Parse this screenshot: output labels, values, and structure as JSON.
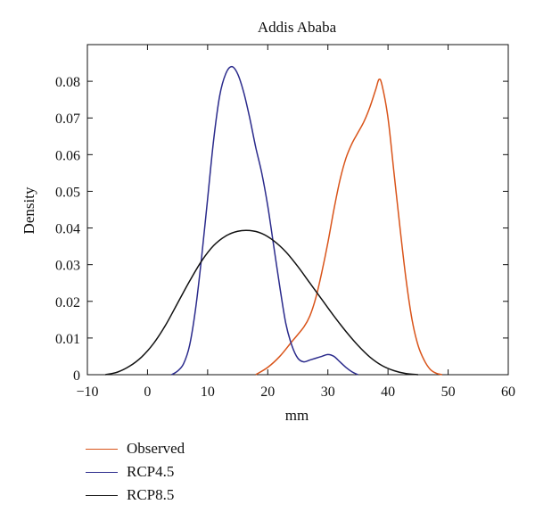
{
  "chart_data": {
    "type": "line",
    "title": "Addis Ababa",
    "xlabel": "mm",
    "ylabel": "Density",
    "xlim": [
      -10,
      60
    ],
    "ylim": [
      0,
      0.09
    ],
    "xticks": [
      -10,
      0,
      10,
      20,
      30,
      40,
      50,
      60
    ],
    "xtick_labels": [
      "−10",
      "0",
      "10",
      "20",
      "30",
      "40",
      "50",
      "60"
    ],
    "yticks": [
      0,
      0.01,
      0.02,
      0.03,
      0.04,
      0.05,
      0.06,
      0.07,
      0.08
    ],
    "ytick_labels": [
      "0",
      "0.01",
      "0.02",
      "0.03",
      "0.04",
      "0.05",
      "0.06",
      "0.07",
      "0.08"
    ],
    "grid": false,
    "legend_position": "below",
    "series": [
      {
        "name": "Observed",
        "color": "#d9541a",
        "x": [
          18,
          20,
          22,
          24,
          26,
          27,
          28,
          29,
          30,
          31,
          32,
          33,
          34,
          35,
          36,
          37,
          38,
          38.5,
          39,
          40,
          41,
          42,
          43,
          44,
          45,
          46,
          47,
          48,
          49
        ],
        "y": [
          0.0,
          0.002,
          0.005,
          0.009,
          0.013,
          0.016,
          0.021,
          0.028,
          0.036,
          0.045,
          0.053,
          0.059,
          0.063,
          0.066,
          0.069,
          0.073,
          0.078,
          0.0805,
          0.079,
          0.07,
          0.055,
          0.04,
          0.026,
          0.015,
          0.008,
          0.004,
          0.0015,
          0.0004,
          0.0
        ]
      },
      {
        "name": "RCP4.5",
        "color": "#2b2b8c",
        "x": [
          4,
          5,
          6,
          7,
          8,
          9,
          10,
          11,
          12,
          13,
          14,
          15,
          16,
          17,
          18,
          19,
          20,
          21,
          22,
          23,
          24,
          25,
          26,
          27,
          28,
          29,
          30,
          31,
          32,
          33,
          34,
          35
        ],
        "y": [
          0.0,
          0.001,
          0.003,
          0.008,
          0.018,
          0.032,
          0.048,
          0.064,
          0.076,
          0.082,
          0.084,
          0.082,
          0.077,
          0.07,
          0.062,
          0.055,
          0.046,
          0.035,
          0.024,
          0.014,
          0.008,
          0.0045,
          0.0035,
          0.004,
          0.0045,
          0.005,
          0.0055,
          0.005,
          0.0035,
          0.002,
          0.0008,
          0.0
        ]
      },
      {
        "name": "RCP8.5",
        "color": "#111111",
        "x": [
          -7,
          -5,
          -3,
          -1,
          1,
          3,
          5,
          7,
          9,
          11,
          13,
          15,
          17,
          19,
          21,
          23,
          25,
          27,
          29,
          31,
          33,
          35,
          37,
          39,
          41,
          43,
          45
        ],
        "y": [
          0.0,
          0.0007,
          0.0023,
          0.0048,
          0.0085,
          0.0135,
          0.0195,
          0.0255,
          0.031,
          0.0352,
          0.0378,
          0.0391,
          0.0393,
          0.0385,
          0.0365,
          0.0335,
          0.0295,
          0.025,
          0.0205,
          0.016,
          0.0118,
          0.008,
          0.0048,
          0.0025,
          0.0011,
          0.0003,
          0.0
        ]
      }
    ]
  }
}
